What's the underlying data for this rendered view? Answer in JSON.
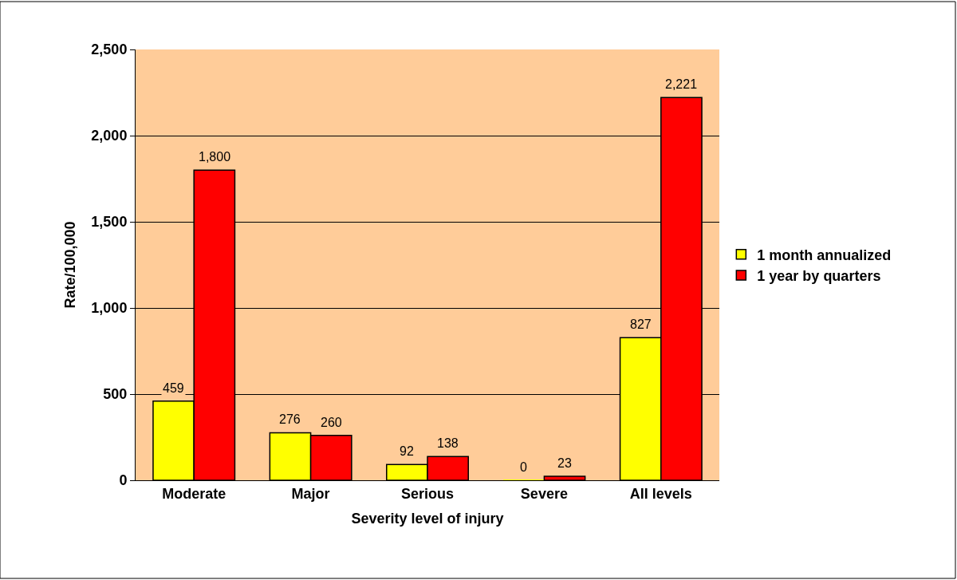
{
  "chart_data": {
    "type": "bar",
    "xlabel": "Severity level of injury",
    "ylabel": "Rate/100,000",
    "categories": [
      "Moderate",
      "Major",
      "Serious",
      "Severe",
      "All levels"
    ],
    "series": [
      {
        "name": "1 month annualized",
        "color": "#ffff00",
        "values": [
          459,
          276,
          92,
          0,
          827
        ],
        "value_labels": [
          "459",
          "276",
          "92",
          "0",
          "827"
        ]
      },
      {
        "name": "1 year by quarters",
        "color": "#ff0000",
        "values": [
          1800,
          260,
          138,
          23,
          2221
        ],
        "value_labels": [
          "1,800",
          "260",
          "138",
          "23",
          "2,221"
        ]
      }
    ],
    "ylim": [
      0,
      2500
    ],
    "yticks": [
      0,
      500,
      {
        "value": 1000,
        "label": "1,000"
      },
      {
        "value": 1500,
        "label": "1,500"
      },
      {
        "value": 2000,
        "label": "2,000"
      },
      {
        "value": 2500,
        "label": "2,500"
      }
    ],
    "grid": "y",
    "legend": "right"
  }
}
